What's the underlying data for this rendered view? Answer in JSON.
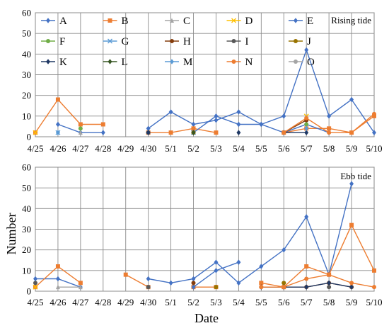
{
  "page": {
    "xlabel": "Date",
    "ylabel": "Number"
  },
  "legend": {
    "placement": "top, inside upper panel, 3 rows x 5 columns",
    "entries": [
      {
        "name": "A",
        "color": "#4472c4",
        "marker": "diamond"
      },
      {
        "name": "B",
        "color": "#ed7d31",
        "marker": "square"
      },
      {
        "name": "C",
        "color": "#a5a5a5",
        "marker": "triangle"
      },
      {
        "name": "D",
        "color": "#ffc000",
        "marker": "x"
      },
      {
        "name": "E",
        "color": "#4472c4",
        "marker": "diamond"
      },
      {
        "name": "F",
        "color": "#70ad47",
        "marker": "circle"
      },
      {
        "name": "G",
        "color": "#5b9bd5",
        "marker": "x"
      },
      {
        "name": "H",
        "color": "#843c0c",
        "marker": "circle"
      },
      {
        "name": "I",
        "color": "#595959",
        "marker": "circle"
      },
      {
        "name": "J",
        "color": "#997300",
        "marker": "circle"
      },
      {
        "name": "K",
        "color": "#1f3864",
        "marker": "diamond"
      },
      {
        "name": "L",
        "color": "#375623",
        "marker": "diamond"
      },
      {
        "name": "M",
        "color": "#5b9bd5",
        "marker": "diamond"
      },
      {
        "name": "N",
        "color": "#ed7d31",
        "marker": "circle"
      },
      {
        "name": "O",
        "color": "#a5a5a5",
        "marker": "circle"
      }
    ]
  },
  "chart_data": [
    {
      "type": "line",
      "title": "Rising tide",
      "xlabel": "",
      "ylabel": "",
      "ylim": [
        0,
        60
      ],
      "yticks": [
        0,
        10,
        20,
        30,
        40,
        50,
        60
      ],
      "grid": true,
      "categories": [
        "4/25",
        "4/26",
        "4/27",
        "4/28",
        "4/29",
        "4/30",
        "5/1",
        "5/2",
        "5/3",
        "5/4",
        "5/5",
        "5/6",
        "5/7",
        "5/8",
        "5/9",
        "5/10"
      ],
      "series": [
        {
          "name": "A",
          "values": [
            null,
            6,
            2,
            2,
            null,
            4,
            12,
            6,
            8,
            12,
            6,
            10,
            42,
            10,
            18,
            2
          ]
        },
        {
          "name": "B",
          "values": [
            2,
            18,
            6,
            6,
            null,
            2,
            2,
            4,
            2,
            null,
            null,
            2,
            4,
            4,
            2,
            10
          ]
        },
        {
          "name": "C",
          "values": [
            null,
            null,
            2,
            null,
            null,
            null,
            null,
            null,
            null,
            null,
            null,
            null,
            null,
            null,
            null,
            null
          ]
        },
        {
          "name": "D",
          "values": [
            2,
            null,
            null,
            null,
            null,
            null,
            null,
            null,
            null,
            null,
            null,
            null,
            10,
            null,
            null,
            null
          ]
        },
        {
          "name": "E",
          "values": [
            null,
            null,
            null,
            null,
            null,
            null,
            null,
            2,
            10,
            6,
            6,
            2,
            6,
            2,
            null,
            null
          ]
        },
        {
          "name": "F",
          "values": [
            null,
            null,
            4,
            null,
            null,
            null,
            null,
            2,
            null,
            null,
            null,
            null,
            6,
            null,
            null,
            null
          ]
        },
        {
          "name": "G",
          "values": [
            null,
            2,
            null,
            null,
            null,
            null,
            null,
            2,
            null,
            null,
            null,
            null,
            null,
            null,
            null,
            null
          ]
        },
        {
          "name": "H",
          "values": [
            null,
            null,
            null,
            null,
            null,
            2,
            null,
            2,
            null,
            null,
            null,
            2,
            8,
            null,
            null,
            null
          ]
        },
        {
          "name": "I",
          "values": [
            null,
            null,
            null,
            null,
            null,
            2,
            null,
            null,
            null,
            null,
            null,
            null,
            null,
            null,
            null,
            null
          ]
        },
        {
          "name": "J",
          "values": [
            null,
            null,
            null,
            null,
            null,
            null,
            null,
            2,
            null,
            null,
            null,
            null,
            null,
            null,
            null,
            null
          ]
        },
        {
          "name": "K",
          "values": [
            null,
            null,
            null,
            null,
            null,
            2,
            null,
            null,
            null,
            2,
            null,
            2,
            2,
            null,
            null,
            null
          ]
        },
        {
          "name": "L",
          "values": [
            null,
            null,
            null,
            null,
            null,
            null,
            null,
            2,
            null,
            null,
            null,
            null,
            null,
            null,
            null,
            null
          ]
        },
        {
          "name": "M",
          "values": [
            null,
            2,
            null,
            null,
            null,
            null,
            null,
            null,
            null,
            null,
            null,
            null,
            4,
            null,
            null,
            null
          ]
        },
        {
          "name": "N",
          "values": [
            null,
            null,
            null,
            null,
            null,
            null,
            null,
            null,
            null,
            null,
            null,
            2,
            9,
            2,
            2,
            11
          ]
        },
        {
          "name": "O",
          "values": [
            null,
            null,
            null,
            null,
            null,
            null,
            null,
            null,
            null,
            null,
            null,
            null,
            null,
            null,
            null,
            null
          ]
        }
      ]
    },
    {
      "type": "line",
      "title": "Ebb tide",
      "xlabel": "Date",
      "ylabel": "Number",
      "ylim": [
        0,
        60
      ],
      "yticks": [
        0,
        10,
        20,
        30,
        40,
        50,
        60
      ],
      "grid": true,
      "categories": [
        "4/25",
        "4/26",
        "4/27",
        "4/28",
        "4/29",
        "4/30",
        "5/1",
        "5/2",
        "5/3",
        "5/4",
        "5/5",
        "5/6",
        "5/7",
        "5/8",
        "5/9",
        "5/10"
      ],
      "series": [
        {
          "name": "A",
          "values": [
            6,
            6,
            2,
            null,
            null,
            6,
            4,
            6,
            14,
            4,
            12,
            20,
            36,
            8,
            52,
            null
          ]
        },
        {
          "name": "B",
          "values": [
            2,
            12,
            4,
            null,
            8,
            2,
            null,
            2,
            2,
            null,
            4,
            2,
            12,
            8,
            32,
            10
          ]
        },
        {
          "name": "C",
          "values": [
            null,
            2,
            2,
            null,
            null,
            null,
            null,
            null,
            null,
            null,
            null,
            null,
            null,
            null,
            null,
            null
          ]
        },
        {
          "name": "D",
          "values": [
            2,
            null,
            null,
            null,
            null,
            null,
            null,
            null,
            null,
            null,
            null,
            null,
            null,
            null,
            null,
            null
          ]
        },
        {
          "name": "E",
          "values": [
            null,
            null,
            null,
            null,
            null,
            null,
            null,
            2,
            10,
            14,
            null,
            null,
            null,
            null,
            null,
            null
          ]
        },
        {
          "name": "F",
          "values": [
            null,
            null,
            null,
            null,
            null,
            null,
            null,
            null,
            null,
            null,
            null,
            4,
            null,
            null,
            null,
            null
          ]
        },
        {
          "name": "G",
          "values": [
            null,
            null,
            null,
            null,
            null,
            null,
            null,
            null,
            null,
            null,
            null,
            null,
            null,
            null,
            null,
            null
          ]
        },
        {
          "name": "H",
          "values": [
            null,
            null,
            null,
            null,
            null,
            null,
            null,
            4,
            null,
            null,
            2,
            2,
            2,
            4,
            2,
            null
          ]
        },
        {
          "name": "I",
          "values": [
            4,
            null,
            null,
            null,
            null,
            2,
            null,
            null,
            null,
            null,
            null,
            null,
            null,
            2,
            null,
            null
          ]
        },
        {
          "name": "J",
          "values": [
            null,
            null,
            null,
            null,
            null,
            null,
            null,
            null,
            2,
            null,
            null,
            4,
            null,
            null,
            null,
            null
          ]
        },
        {
          "name": "K",
          "values": [
            null,
            null,
            null,
            null,
            null,
            null,
            null,
            null,
            null,
            null,
            2,
            2,
            2,
            4,
            2,
            null
          ]
        },
        {
          "name": "L",
          "values": [
            null,
            null,
            null,
            null,
            null,
            null,
            null,
            null,
            null,
            null,
            null,
            null,
            null,
            null,
            null,
            null
          ]
        },
        {
          "name": "M",
          "values": [
            null,
            null,
            null,
            null,
            null,
            null,
            null,
            null,
            null,
            null,
            null,
            null,
            null,
            null,
            null,
            null
          ]
        },
        {
          "name": "N",
          "values": [
            null,
            null,
            null,
            null,
            null,
            null,
            null,
            null,
            null,
            null,
            2,
            2,
            6,
            8,
            4,
            2
          ]
        },
        {
          "name": "O",
          "values": [
            null,
            null,
            null,
            null,
            null,
            null,
            null,
            null,
            null,
            null,
            null,
            null,
            null,
            null,
            null,
            null
          ]
        }
      ]
    }
  ]
}
